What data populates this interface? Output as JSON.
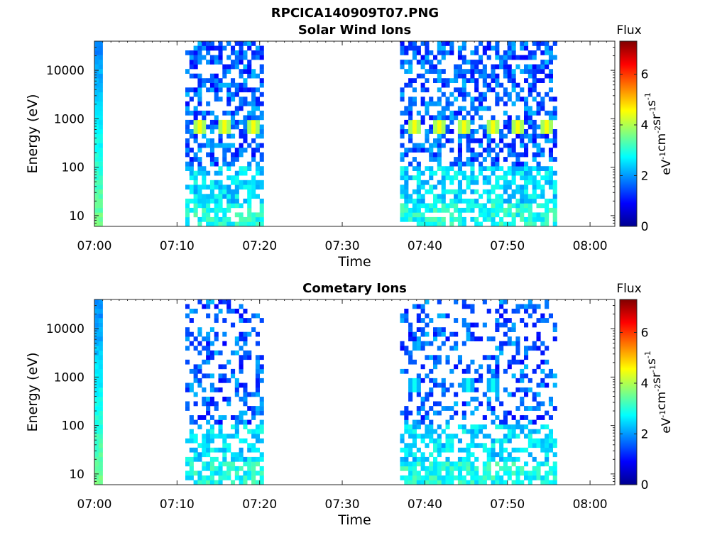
{
  "figure": {
    "title": "RPCICA140909T07.PNG"
  },
  "chart_data": [
    {
      "type": "heatmap",
      "title": "Solar Wind Ions",
      "xlabel": "Time",
      "ylabel": "Energy (eV)",
      "x_scale": "time",
      "y_scale": "log",
      "xlim": [
        "07:00",
        "08:03"
      ],
      "ylim": [
        6,
        40000
      ],
      "x_ticks": [
        "07:00",
        "07:10",
        "07:20",
        "07:30",
        "07:40",
        "07:50",
        "08:00"
      ],
      "y_ticks": [
        "10",
        "100",
        "1000",
        "10000"
      ],
      "colorbar": {
        "title": "Flux",
        "unit": "eV-1cm-2sr-1s-1",
        "range": [
          0,
          7.3
        ],
        "ticks": [
          "0",
          "2",
          "4",
          "6"
        ],
        "colormap": "jet"
      },
      "data_intervals": [
        {
          "start": "07:00",
          "end": "07:01"
        },
        {
          "start": "07:11",
          "end": "07:20.5"
        },
        {
          "start": "07:37",
          "end": "07:56"
        }
      ],
      "features": [
        {
          "description": "peak flux band near 700 eV",
          "energy": 700,
          "times": [
            "07:12.5",
            "07:15.5",
            "07:19",
            "07:38.5",
            "07:41.5",
            "07:44.5",
            "07:48",
            "07:51",
            "07:54.5"
          ],
          "flux": 4.5
        },
        {
          "description": "low-energy band",
          "energy": 10,
          "flux": 3.0
        }
      ]
    },
    {
      "type": "heatmap",
      "title": "Cometary Ions",
      "xlabel": "Time",
      "ylabel": "Energy (eV)",
      "x_scale": "time",
      "y_scale": "log",
      "xlim": [
        "07:00",
        "08:03"
      ],
      "ylim": [
        6,
        40000
      ],
      "x_ticks": [
        "07:00",
        "07:10",
        "07:20",
        "07:30",
        "07:40",
        "07:50",
        "08:00"
      ],
      "y_ticks": [
        "10",
        "100",
        "1000",
        "10000"
      ],
      "colorbar": {
        "title": "Flux",
        "unit": "eV-1cm-2sr-1s-1",
        "range": [
          0,
          7.3
        ],
        "ticks": [
          "0",
          "2",
          "4",
          "6"
        ],
        "colormap": "jet"
      },
      "data_intervals": [
        {
          "start": "07:00",
          "end": "07:01"
        },
        {
          "start": "07:11",
          "end": "07:20.5"
        },
        {
          "start": "07:37",
          "end": "07:56"
        }
      ],
      "features": [
        {
          "description": "moderate flux near 700 eV",
          "energy": 700,
          "times": [
            "07:38.5",
            "07:45",
            "07:48"
          ],
          "flux": 2.8
        },
        {
          "description": "low-energy band",
          "energy": 10,
          "flux": 2.8
        }
      ]
    }
  ],
  "colors": {
    "axis": "#262626",
    "background": "#ffffff"
  }
}
